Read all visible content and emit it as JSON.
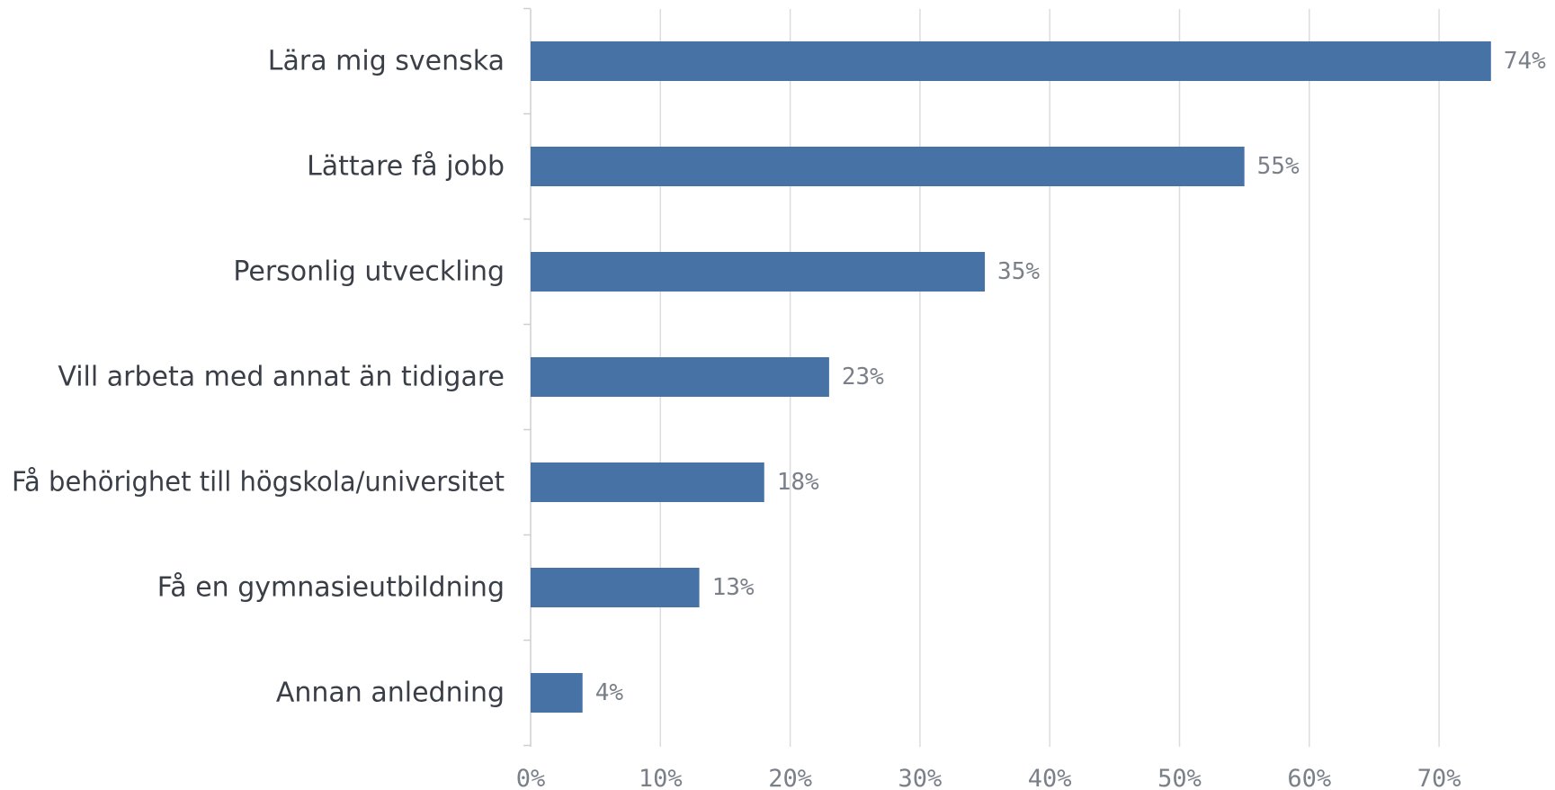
{
  "chart_data": {
    "type": "bar",
    "orientation": "horizontal",
    "categories": [
      "Lära mig svenska",
      "Lättare få jobb",
      "Personlig utveckling",
      "Vill arbeta med annat än tidigare",
      "Få behörighet till högskola/universitet",
      "Få en gymnasieutbildning",
      "Annan anledning"
    ],
    "values": [
      74,
      55,
      35,
      23,
      18,
      13,
      4
    ],
    "value_labels": [
      "74%",
      "55%",
      "35%",
      "23%",
      "18%",
      "13%",
      "4%"
    ],
    "xticks": [
      0,
      10,
      20,
      30,
      40,
      50,
      60,
      70
    ],
    "xtick_labels": [
      "0%",
      "10%",
      "20%",
      "30%",
      "40%",
      "50%",
      "60%",
      "70%"
    ],
    "xlim": [
      0,
      78
    ],
    "grid": true,
    "bar_color": "#4672a6",
    "title": "",
    "xlabel": "",
    "ylabel": ""
  }
}
